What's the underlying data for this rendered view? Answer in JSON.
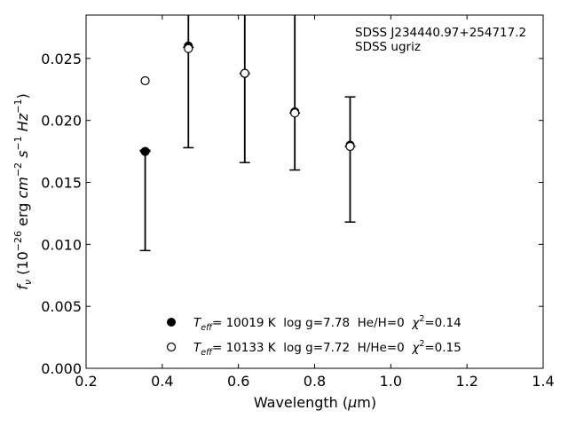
{
  "chart_data": {
    "type": "scatter",
    "title": "",
    "xlabel": "Wavelength (μm)",
    "ylabel": "f_ν (10^-26 erg cm^-2 s^-1 Hz^-1)",
    "xlim": [
      0.2,
      1.4
    ],
    "ylim": [
      0.0,
      0.0285
    ],
    "x_ticks": [
      "0.2",
      "0.4",
      "0.6",
      "0.8",
      "1.0",
      "1.2",
      "1.4"
    ],
    "y_ticks": [
      "0.000",
      "0.005",
      "0.010",
      "0.015",
      "0.020",
      "0.025"
    ],
    "grid": false,
    "legend_position": "lower-center",
    "annotations": [
      "SDSS J234440.97+254717.2",
      "SDSS ugriz"
    ],
    "observed": {
      "x": [
        0.3551,
        0.4686,
        0.6166,
        0.748,
        0.8932
      ],
      "y": [
        0.0175,
        0.0259,
        0.0238,
        0.0206,
        0.0179
      ],
      "y_lower": [
        0.0095,
        0.0178,
        0.0166,
        0.016,
        0.0118
      ],
      "y_upper": [
        0.0176,
        0.0285,
        0.0285,
        0.0285,
        0.0219
      ]
    },
    "series": [
      {
        "marker": "filled-circle",
        "color": "#000000",
        "label_parts": {
          "teff": "10019 K",
          "logg": "log g=7.78",
          "comp": "He/H=0",
          "chi2": "=0.14"
        },
        "x": [
          0.3551,
          0.4686,
          0.6166,
          0.748,
          0.8932
        ],
        "y": [
          0.0175,
          0.026,
          0.0238,
          0.0207,
          0.018
        ]
      },
      {
        "marker": "open-circle",
        "color": "#000000",
        "label_parts": {
          "teff": "10133 K",
          "logg": "log g=7.72",
          "comp": "H/He=0",
          "chi2": "=0.15"
        },
        "x": [
          0.3551,
          0.4686,
          0.6166,
          0.748,
          0.8932
        ],
        "y": [
          0.0232,
          0.0258,
          0.0238,
          0.0206,
          0.0179
        ]
      }
    ]
  }
}
